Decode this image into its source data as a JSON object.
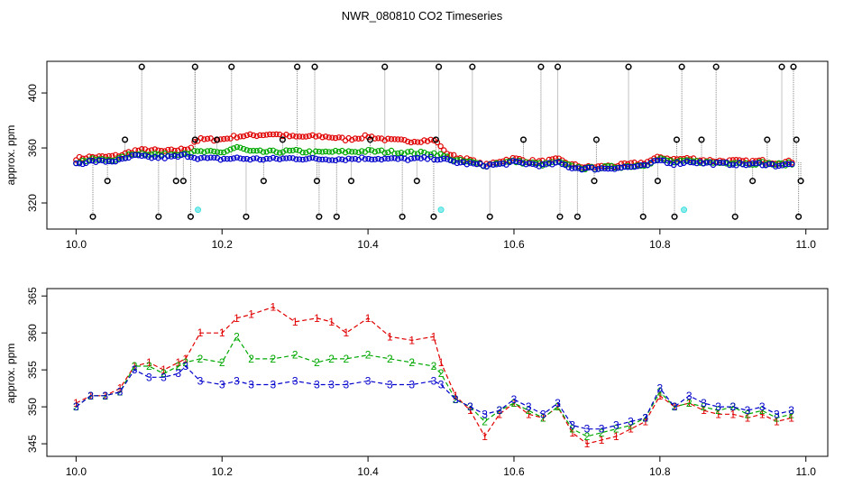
{
  "title": "NWR_080810  CO2 Timeseries",
  "colors": {
    "series1": "#e00000",
    "series2": "#00a800",
    "series3": "#0000cc",
    "black": "#000000",
    "cyan": "#40e0e0",
    "grey": "#888888"
  },
  "chart_data": [
    {
      "type": "scatter",
      "title": "NWR_080810  CO2 Timeseries",
      "ylabel": "approx. ppm",
      "xlim": [
        9.96,
        11.03
      ],
      "ylim": [
        301,
        423
      ],
      "xticks": [
        10.0,
        10.2,
        10.4,
        10.6,
        10.8,
        11.0
      ],
      "xticklabels": [
        "10.0",
        "10.2",
        "10.4",
        "10.6",
        "10.8",
        "11.0"
      ],
      "yticks": [
        320,
        360,
        400
      ],
      "yticklabels": [
        "320",
        "360",
        "400"
      ],
      "outlier_high": [
        10.09,
        10.163,
        10.213,
        10.303,
        10.327,
        10.423,
        10.497,
        10.543,
        10.637,
        10.66,
        10.757,
        10.83,
        10.877,
        10.967,
        10.983
      ],
      "outlier_low": [
        10.023,
        10.113,
        10.157,
        10.233,
        10.333,
        10.357,
        10.447,
        10.49,
        10.567,
        10.663,
        10.687,
        10.777,
        10.82,
        10.903,
        10.99
      ],
      "outlier_mid_high": [
        10.067,
        10.163,
        10.193,
        10.283,
        10.403,
        10.493,
        10.613,
        10.713,
        10.823,
        10.857,
        10.947,
        10.987
      ],
      "outlier_mid_low": [
        10.043,
        10.137,
        10.147,
        10.257,
        10.33,
        10.377,
        10.467,
        10.71,
        10.797,
        10.927,
        10.993
      ],
      "cyan_points": [
        [
          10.167,
          315
        ],
        [
          10.5,
          315
        ],
        [
          10.833,
          315
        ]
      ]
    },
    {
      "type": "line",
      "ylabel": "approx. ppm",
      "xlim": [
        9.96,
        11.03
      ],
      "ylim": [
        343.3,
        366
      ],
      "xticks": [
        10.0,
        10.2,
        10.4,
        10.6,
        10.8,
        11.0
      ],
      "xticklabels": [
        "10.0",
        "10.2",
        "10.4",
        "10.6",
        "10.8",
        "11.0"
      ],
      "yticks": [
        345,
        350,
        355,
        360,
        365
      ],
      "yticklabels": [
        "345",
        "350",
        "355",
        "360",
        "365"
      ],
      "x": [
        10.0,
        10.02,
        10.04,
        10.06,
        10.08,
        10.1,
        10.12,
        10.14,
        10.15,
        10.17,
        10.2,
        10.22,
        10.24,
        10.27,
        10.3,
        10.33,
        10.35,
        10.37,
        10.4,
        10.43,
        10.46,
        10.49,
        10.5,
        10.52,
        10.54,
        10.56,
        10.58,
        10.6,
        10.62,
        10.64,
        10.66,
        10.68,
        10.7,
        10.72,
        10.74,
        10.76,
        10.78,
        10.8,
        10.82,
        10.84,
        10.86,
        10.88,
        10.9,
        10.92,
        10.94,
        10.96,
        10.98
      ],
      "series": [
        {
          "name": "1",
          "marker": "1",
          "values": [
            350.5,
            351.5,
            351.5,
            352.5,
            355.5,
            356.0,
            355.0,
            356.0,
            356.5,
            360.0,
            360.0,
            362.0,
            362.5,
            363.5,
            361.5,
            362.0,
            361.5,
            360.0,
            362.0,
            359.5,
            359.0,
            359.5,
            356.0,
            351.5,
            349.5,
            346.0,
            349.0,
            350.5,
            349.0,
            348.5,
            350.0,
            346.5,
            345.0,
            345.5,
            346.0,
            347.0,
            348.0,
            351.5,
            350.0,
            350.5,
            349.5,
            349.0,
            349.0,
            348.5,
            349.0,
            348.0,
            348.5
          ]
        },
        {
          "name": "2",
          "marker": "2",
          "values": [
            350.0,
            351.5,
            351.5,
            352.0,
            355.5,
            355.5,
            354.5,
            355.5,
            356.0,
            356.5,
            356.0,
            359.5,
            356.5,
            356.5,
            357.0,
            356.0,
            356.5,
            356.5,
            357.0,
            356.5,
            356.0,
            355.5,
            354.5,
            351.0,
            350.0,
            348.0,
            349.5,
            350.5,
            349.5,
            348.5,
            350.0,
            347.0,
            346.0,
            346.5,
            347.0,
            347.5,
            348.5,
            352.0,
            350.0,
            350.5,
            350.0,
            349.5,
            350.0,
            349.0,
            349.5,
            348.5,
            349.0
          ]
        },
        {
          "name": "3",
          "marker": "3",
          "values": [
            350.0,
            351.5,
            351.5,
            352.0,
            355.0,
            354.0,
            354.0,
            354.5,
            355.5,
            353.5,
            353.0,
            353.5,
            353.0,
            353.0,
            353.5,
            353.0,
            353.0,
            353.0,
            353.5,
            353.0,
            353.0,
            353.5,
            353.0,
            351.0,
            350.0,
            349.0,
            349.5,
            351.0,
            350.0,
            349.0,
            350.5,
            347.5,
            347.0,
            347.0,
            347.5,
            348.0,
            348.5,
            352.5,
            350.0,
            351.5,
            350.5,
            350.0,
            350.0,
            349.5,
            350.0,
            349.0,
            349.5
          ]
        }
      ]
    }
  ]
}
